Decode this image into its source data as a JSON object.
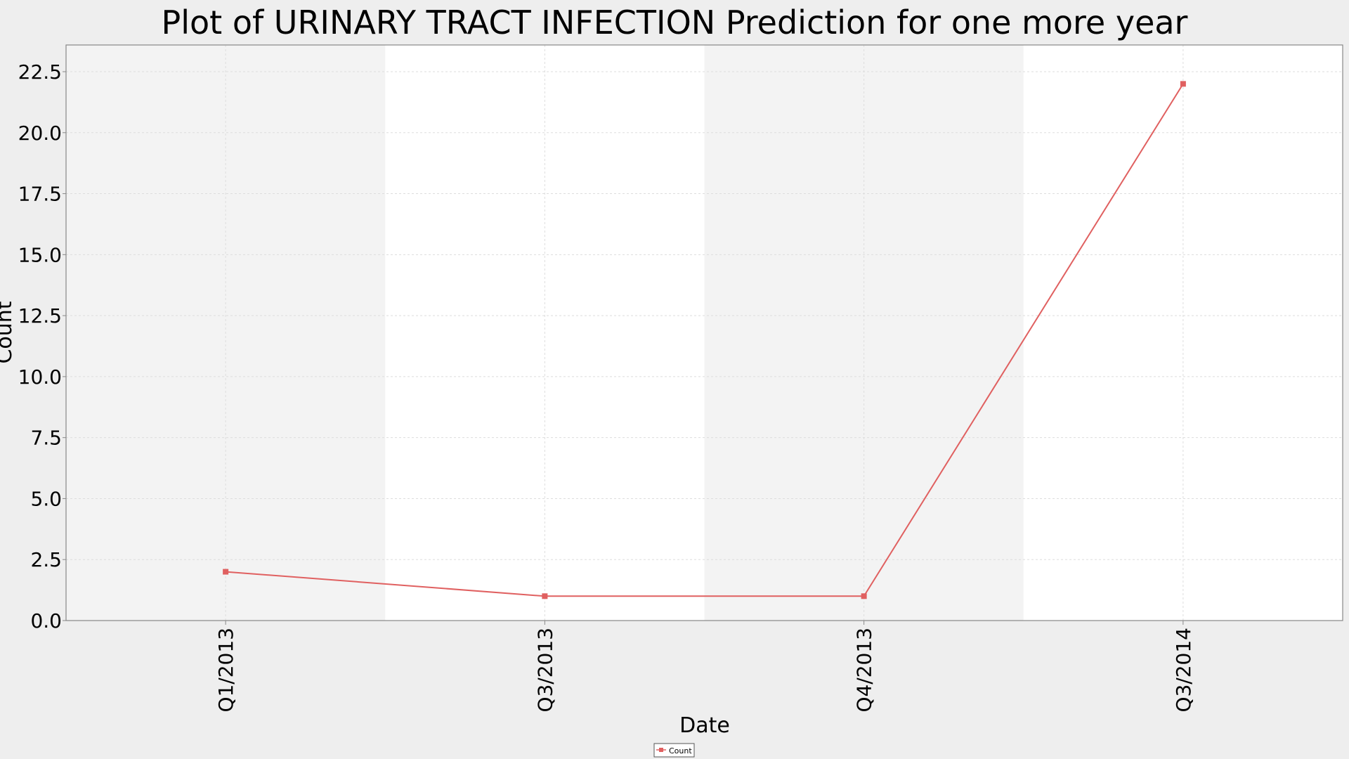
{
  "chart_data": {
    "type": "line",
    "title": "Plot of URINARY TRACT INFECTION Prediction for one more year",
    "xlabel": "Date",
    "ylabel": "Count",
    "categories": [
      "Q1/2013",
      "Q3/2013",
      "Q4/2013",
      "Q3/2014"
    ],
    "series": [
      {
        "name": "Count",
        "values": [
          2,
          1,
          1,
          22
        ],
        "color": "#e06060"
      }
    ],
    "ylim": [
      0,
      23
    ],
    "yticks": [
      "0.0",
      "2.5",
      "5.0",
      "7.5",
      "10.0",
      "12.5",
      "15.0",
      "17.5",
      "20.0",
      "22.5"
    ],
    "ytick_values": [
      0,
      2.5,
      5,
      7.5,
      10,
      12.5,
      15,
      17.5,
      20,
      22.5
    ],
    "grid": true,
    "legend": "bottom-center",
    "colors": {
      "page_background": "#eeeeee",
      "plot_band_shaded": "#f3f3f3",
      "plot_band_plain": "#ffffff",
      "gridline": "#dddddd",
      "axis": "#888888"
    }
  }
}
